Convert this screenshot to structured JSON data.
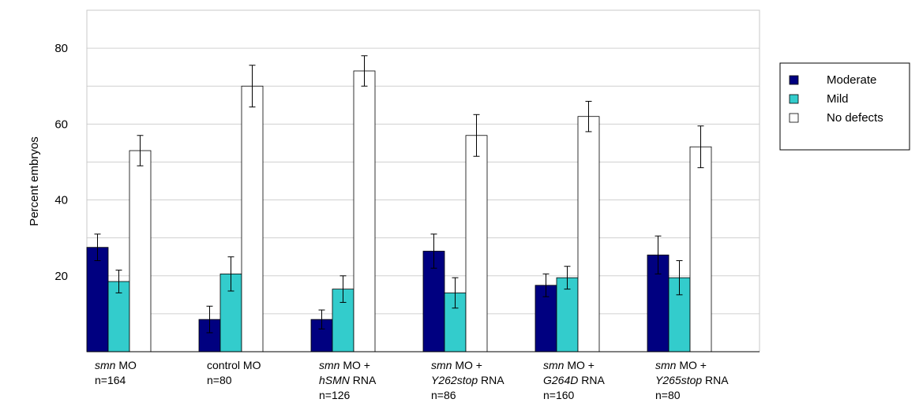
{
  "chart_data": {
    "type": "bar",
    "title": "",
    "xlabel": "",
    "ylabel": "Percent embryos",
    "ylim": [
      0,
      90
    ],
    "yticks": [
      20,
      40,
      60,
      80
    ],
    "grid": true,
    "legend_position": "right",
    "categories": [
      {
        "lines": [
          [
            {
              "t": "smn",
              "i": true
            },
            {
              "t": " MO",
              "i": false
            }
          ],
          [
            {
              "t": "n=164",
              "i": false
            }
          ]
        ]
      },
      {
        "lines": [
          [
            {
              "t": "control MO",
              "i": false
            }
          ],
          [
            {
              "t": "n=80",
              "i": false
            }
          ]
        ]
      },
      {
        "lines": [
          [
            {
              "t": "smn",
              "i": true
            },
            {
              "t": " MO +",
              "i": false
            }
          ],
          [
            {
              "t": "hSMN",
              "i": true
            },
            {
              "t": " RNA",
              "i": false
            }
          ],
          [
            {
              "t": "n=126",
              "i": false
            }
          ]
        ]
      },
      {
        "lines": [
          [
            {
              "t": "smn",
              "i": true
            },
            {
              "t": " MO +",
              "i": false
            }
          ],
          [
            {
              "t": "Y262stop",
              "i": true
            },
            {
              "t": " RNA",
              "i": false
            }
          ],
          [
            {
              "t": "n=86",
              "i": false
            }
          ]
        ]
      },
      {
        "lines": [
          [
            {
              "t": "smn",
              "i": true
            },
            {
              "t": " MO +",
              "i": false
            }
          ],
          [
            {
              "t": "G264D",
              "i": true
            },
            {
              "t": " RNA",
              "i": false
            }
          ],
          [
            {
              "t": "n=160",
              "i": false
            }
          ]
        ]
      },
      {
        "lines": [
          [
            {
              "t": "smn",
              "i": true
            },
            {
              "t": " MO +",
              "i": false
            }
          ],
          [
            {
              "t": "Y265stop",
              "i": true
            },
            {
              "t": " RNA",
              "i": false
            }
          ],
          [
            {
              "t": "n=80",
              "i": false
            }
          ]
        ]
      }
    ],
    "series": [
      {
        "name": "Moderate",
        "color": "#000080",
        "values": [
          27.5,
          8.5,
          8.5,
          26.5,
          17.5,
          25.5
        ],
        "errors": [
          3.5,
          3.5,
          2.5,
          4.5,
          3.0,
          5.0
        ]
      },
      {
        "name": "Mild",
        "color": "#33cccc",
        "values": [
          18.5,
          20.5,
          16.5,
          15.5,
          19.5,
          19.5
        ],
        "errors": [
          3.0,
          4.5,
          3.5,
          4.0,
          3.0,
          4.5
        ]
      },
      {
        "name": "No defects",
        "color": "#ffffff",
        "values": [
          53,
          70,
          74,
          57,
          62,
          54
        ],
        "errors": [
          4.0,
          5.5,
          4.0,
          5.5,
          4.0,
          5.5
        ]
      }
    ]
  }
}
